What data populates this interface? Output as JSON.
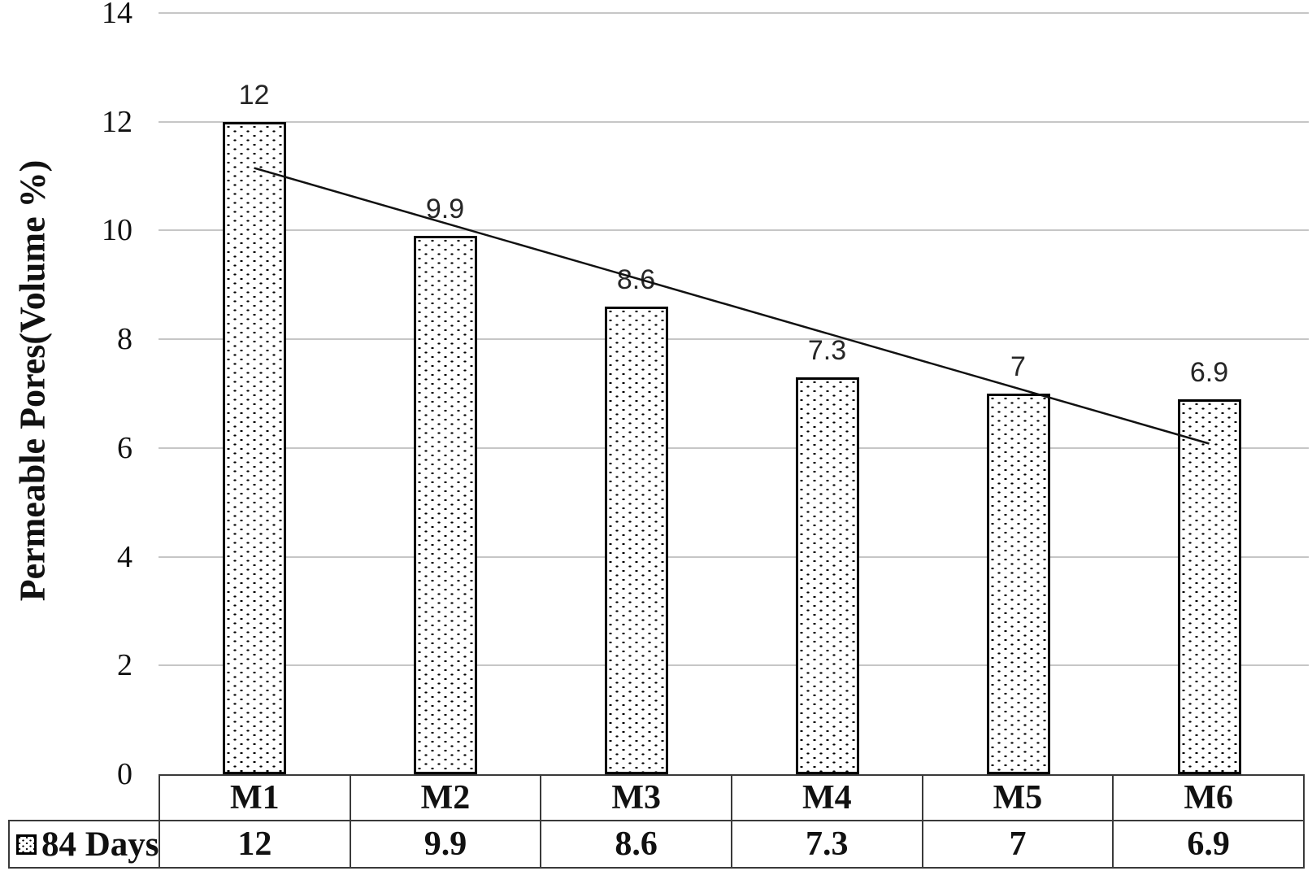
{
  "chart_data": {
    "type": "bar",
    "title": "",
    "categories": [
      "M1",
      "M2",
      "M3",
      "M4",
      "M5",
      "M6"
    ],
    "series": [
      {
        "name": "84 Days",
        "values": [
          12,
          9.9,
          8.6,
          7.3,
          7,
          6.9
        ],
        "labels": [
          "12",
          "9.9",
          "8.6",
          "7.3",
          "7",
          "6.9"
        ]
      }
    ],
    "xlabel": "",
    "ylabel": "Permeable Pores(Volume %)",
    "ylim": [
      0,
      14
    ],
    "yticks": [
      0,
      2,
      4,
      6,
      8,
      10,
      12,
      14
    ],
    "grid": "horizontal-on",
    "legend_position": "bottom-left-of-data-table",
    "bar_fill_style": "white-with-black-dot-pattern",
    "trendline": {
      "type": "linear",
      "start_value": 11.15,
      "end_value": 6.08
    },
    "data_table": {
      "header_row": [
        "M1",
        "M2",
        "M3",
        "M4",
        "M5",
        "M6"
      ],
      "value_row": [
        "12",
        "9.9",
        "8.6",
        "7.3",
        "7",
        "6.9"
      ],
      "row_label": "84 Days"
    },
    "colors": {
      "bar_border": "#000000",
      "bar_fill": "#ffffff",
      "gridline": "#c6c6c6",
      "table_border": "#3a3a3a",
      "text": "#111111",
      "trendline": "#111111"
    }
  }
}
